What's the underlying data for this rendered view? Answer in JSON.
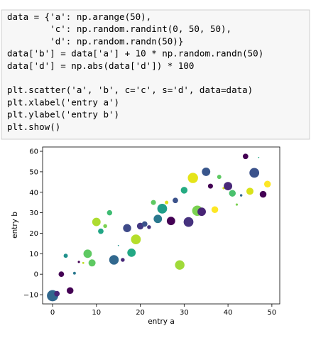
{
  "code": {
    "blocks": [
      [
        "data = {'a': np.arange(50),",
        "        'c': np.random.randint(0, 50, 50),",
        "        'd': np.random.randn(50)}",
        "data['b'] = data['a'] + 10 * np.random.randn(50)",
        "data['d'] = np.abs(data['d']) * 100"
      ],
      [
        "plt.scatter('a', 'b', c='c', s='d', data=data)",
        "plt.xlabel('entry a')",
        "plt.ylabel('entry b')",
        "plt.show()"
      ]
    ]
  },
  "chart_data": {
    "type": "scatter",
    "xlabel": "entry a",
    "ylabel": "entry b",
    "x": [
      0,
      1,
      2,
      3,
      4,
      5,
      6,
      7,
      8,
      9,
      10,
      11,
      12,
      13,
      14,
      15,
      16,
      17,
      18,
      19,
      20,
      21,
      22,
      23,
      24,
      25,
      26,
      27,
      28,
      29,
      30,
      31,
      32,
      33,
      34,
      35,
      36,
      37,
      38,
      39,
      40,
      41,
      42,
      43,
      44,
      45,
      46,
      47,
      48,
      49
    ],
    "y": [
      -10.5,
      -9.5,
      0,
      9,
      -8,
      0.5,
      6,
      5.5,
      10,
      5.5,
      25.5,
      21,
      23.5,
      30,
      7,
      14,
      7,
      22.5,
      10.5,
      17,
      23.5,
      24.5,
      23,
      35,
      27,
      32,
      35,
      26,
      36,
      4.5,
      41,
      25.5,
      47,
      31,
      30.5,
      50,
      43,
      31.5,
      47.5,
      42,
      43,
      39.5,
      34,
      38.5,
      57.5,
      40.5,
      49.5,
      57,
      39,
      44
    ],
    "sizes": [
      250,
      60,
      60,
      35,
      90,
      15,
      10,
      8,
      140,
      100,
      140,
      60,
      30,
      55,
      180,
      3,
      30,
      130,
      140,
      190,
      90,
      60,
      30,
      50,
      140,
      190,
      25,
      140,
      60,
      180,
      90,
      190,
      210,
      210,
      140,
      140,
      50,
      90,
      35,
      10,
      140,
      90,
      10,
      12,
      60,
      100,
      190,
      3,
      90,
      90
    ],
    "colors": [
      "#31688e",
      "#482677",
      "#440154",
      "#21918c",
      "#440154",
      "#2a788e",
      "#440154",
      "#bddf26",
      "#5ec962",
      "#5ec962",
      "#addc30",
      "#21a685",
      "#7ad151",
      "#3fbc73",
      "#31688e",
      "#21918c",
      "#482878",
      "#3e4a89",
      "#22a884",
      "#b5de2b",
      "#443983",
      "#3b528b",
      "#46327e",
      "#5ec962",
      "#2a788e",
      "#1f9e89",
      "#d8e219",
      "#440154",
      "#3b528b",
      "#a0da39",
      "#25ab82",
      "#46327e",
      "#e5e419",
      "#7ad151",
      "#482475",
      "#39568c",
      "#440154",
      "#fde725",
      "#5ec962",
      "#d8e219",
      "#482878",
      "#4ac16d",
      "#7ad151",
      "#31688e",
      "#440154",
      "#d8e219",
      "#3b528b",
      "#22a884",
      "#440154",
      "#fde725"
    ],
    "xlim": [
      -2.27,
      51.8
    ],
    "ylim": [
      -14.5,
      62.1
    ],
    "xticks": [
      0,
      10,
      20,
      30,
      40,
      50
    ],
    "yticks": [
      {
        "value": -10,
        "label": "−10"
      },
      0,
      10,
      20,
      30,
      40,
      50,
      60
    ]
  }
}
